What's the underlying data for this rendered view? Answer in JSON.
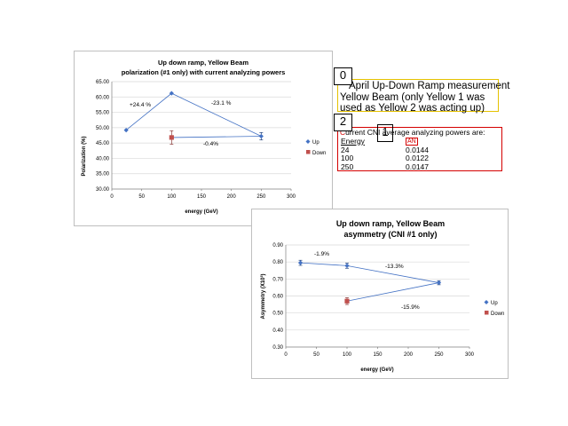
{
  "charts": {
    "chart1": {
      "title_line1": "Up down ramp, Yellow Beam",
      "title_line2": "polarization (#1 only) with current analyzing powers",
      "ylabel": "Polarization (%)",
      "xlabel": "energy (GeV)",
      "yticks": [
        "65.00",
        "60.00",
        "55.00",
        "50.00",
        "45.00",
        "40.00",
        "35.00",
        "30.00"
      ],
      "xticks": [
        "0",
        "50",
        "100",
        "150",
        "200",
        "250",
        "300"
      ],
      "annotations": [
        "+24.4 %",
        "-23.1 %",
        "-0.4%"
      ],
      "legend": [
        "Up",
        "Down"
      ]
    },
    "chart2": {
      "title_line1": "Up down ramp, Yellow Beam",
      "title_line2": "asymmetry (CNI #1 only)",
      "ylabel": "Asymmetry (X10³)",
      "xlabel": "energy (GeV)",
      "yticks": [
        "0.90",
        "0.80",
        "0.70",
        "0.60",
        "0.50",
        "0.40",
        "0.30"
      ],
      "xticks": [
        "0",
        "50",
        "100",
        "150",
        "200",
        "250",
        "300"
      ],
      "annotations": [
        "-1.9%",
        "-13.3%",
        "-15.9%"
      ],
      "legend": [
        "Up",
        "Down"
      ]
    }
  },
  "chart_data": [
    {
      "type": "scatter",
      "title": "Up down ramp, Yellow Beam polarization (#1 only) with current analyzing powers",
      "xlabel": "energy (GeV)",
      "ylabel": "Polarization (%)",
      "xlim": [
        0,
        300
      ],
      "ylim": [
        30,
        65
      ],
      "grid": true,
      "legend_position": "right",
      "series": [
        {
          "name": "Up",
          "color": "#4472c4",
          "marker": "diamond",
          "x": [
            24,
            100,
            250
          ],
          "y": [
            49.2,
            61.2,
            47.2
          ],
          "err": [
            0,
            0,
            1.2
          ]
        },
        {
          "name": "Down",
          "color": "#c0504d",
          "marker": "square",
          "x": [
            100
          ],
          "y": [
            46.8
          ],
          "err": [
            2.2
          ]
        }
      ],
      "lines": [
        {
          "color": "#4472c4",
          "x": [
            24,
            100,
            250
          ],
          "y": [
            49.2,
            61.2,
            47.2
          ]
        },
        {
          "color": "#4472c4",
          "x": [
            100,
            250
          ],
          "y": [
            46.8,
            47.2
          ]
        }
      ]
    },
    {
      "type": "scatter",
      "title": "Up down ramp, Yellow Beam asymmetry (CNI #1 only)",
      "xlabel": "energy (GeV)",
      "ylabel": "Asymmetry (X10³)",
      "xlim": [
        0,
        300
      ],
      "ylim": [
        0.3,
        0.9
      ],
      "grid": true,
      "legend_position": "right",
      "series": [
        {
          "name": "Up",
          "color": "#4472c4",
          "marker": "diamond",
          "x": [
            24,
            100,
            250
          ],
          "y": [
            0.795,
            0.778,
            0.678
          ],
          "err": [
            0.015,
            0.015,
            0.012
          ]
        },
        {
          "name": "Down",
          "color": "#c0504d",
          "marker": "square",
          "x": [
            100
          ],
          "y": [
            0.57
          ],
          "err": [
            0.02
          ]
        }
      ],
      "lines": [
        {
          "color": "#4472c4",
          "x": [
            24,
            100,
            250
          ],
          "y": [
            0.795,
            0.778,
            0.678
          ]
        },
        {
          "color": "#4472c4",
          "x": [
            100,
            250
          ],
          "y": [
            0.57,
            0.678
          ]
        }
      ]
    }
  ],
  "notes": {
    "tag0": "0",
    "tag1": "1",
    "tag2": "2",
    "note0_line1": "April Up-Down Ramp measurement",
    "note0_line2": "Yellow Beam (only Yellow 1 was",
    "note0_line3": "used as Yellow 2 was acting up)",
    "note2_head_red": "C",
    "note2_head_rest": "urrent CNI average analyzing powers are:",
    "table_headers": [
      "Energy",
      "AN"
    ],
    "table_rows": [
      [
        "24",
        "0.0144"
      ],
      [
        "100",
        "0.0122"
      ],
      [
        "250",
        "0.0147"
      ]
    ],
    "colors": {
      "yellow_border": "#e5c200",
      "red_border": "#d40000"
    }
  }
}
